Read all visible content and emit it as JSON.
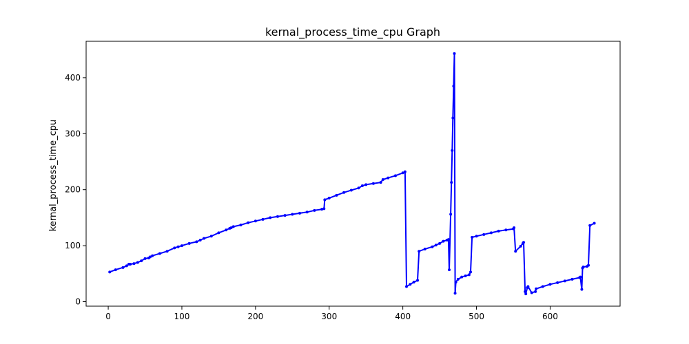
{
  "chart_data": {
    "type": "line",
    "title": "kernal_process_time_cpu Graph",
    "xlabel": "",
    "ylabel": "kernal_process_time_cpu",
    "xlim": [
      -30,
      695
    ],
    "ylim": [
      -8,
      465
    ],
    "x_ticks": [
      0,
      100,
      200,
      300,
      400,
      500,
      600
    ],
    "y_ticks": [
      0,
      100,
      200,
      300,
      400
    ],
    "grid": false,
    "line_color": "#0000ff",
    "marker": "dot",
    "series": [
      {
        "x": [
          2,
          10,
          20,
          25,
          28,
          30,
          35,
          40,
          45,
          50,
          55,
          57,
          60,
          70,
          80,
          90,
          95,
          100,
          110,
          120,
          125,
          130,
          140,
          150,
          160,
          165,
          167,
          170,
          180,
          190,
          200,
          210,
          220,
          230,
          240,
          250,
          260,
          270,
          280,
          290,
          293,
          294,
          300,
          310,
          320,
          330,
          340,
          345,
          350,
          360,
          370,
          373,
          380,
          390,
          400,
          403,
          405,
          410,
          415,
          420,
          422,
          430,
          440,
          445,
          450,
          455,
          460,
          462,
          463,
          465,
          466,
          467,
          468,
          469,
          470,
          471,
          472,
          475,
          480,
          485,
          490,
          492,
          494,
          500,
          510,
          520,
          530,
          540,
          550,
          551,
          553,
          560,
          563,
          564,
          566,
          567,
          569,
          570,
          575,
          580,
          581,
          590,
          600,
          610,
          620,
          630,
          640,
          641,
          643,
          644,
          645,
          650,
          652,
          654,
          660
        ],
        "y": [
          53,
          57,
          61,
          64,
          67,
          67,
          68,
          70,
          73,
          77,
          78,
          80,
          82,
          86,
          90,
          96,
          98,
          100,
          104,
          107,
          110,
          113,
          117,
          123,
          128,
          131,
          132,
          134,
          137,
          141,
          144,
          147,
          150,
          152,
          154,
          156,
          158,
          160,
          163,
          165,
          166,
          182,
          185,
          190,
          195,
          199,
          203,
          207,
          209,
          211,
          213,
          218,
          221,
          225,
          230,
          232,
          27,
          31,
          35,
          38,
          90,
          94,
          98,
          101,
          104,
          108,
          110,
          111,
          57,
          156,
          213,
          270,
          328,
          385,
          443,
          15,
          35,
          40,
          44,
          46,
          48,
          53,
          115,
          117,
          120,
          123,
          126,
          128,
          130,
          132,
          90,
          99,
          104,
          106,
          18,
          14,
          25,
          27,
          16,
          18,
          23,
          27,
          31,
          34,
          37,
          40,
          43,
          44,
          22,
          60,
          62,
          63,
          65,
          136,
          140
        ]
      }
    ]
  }
}
